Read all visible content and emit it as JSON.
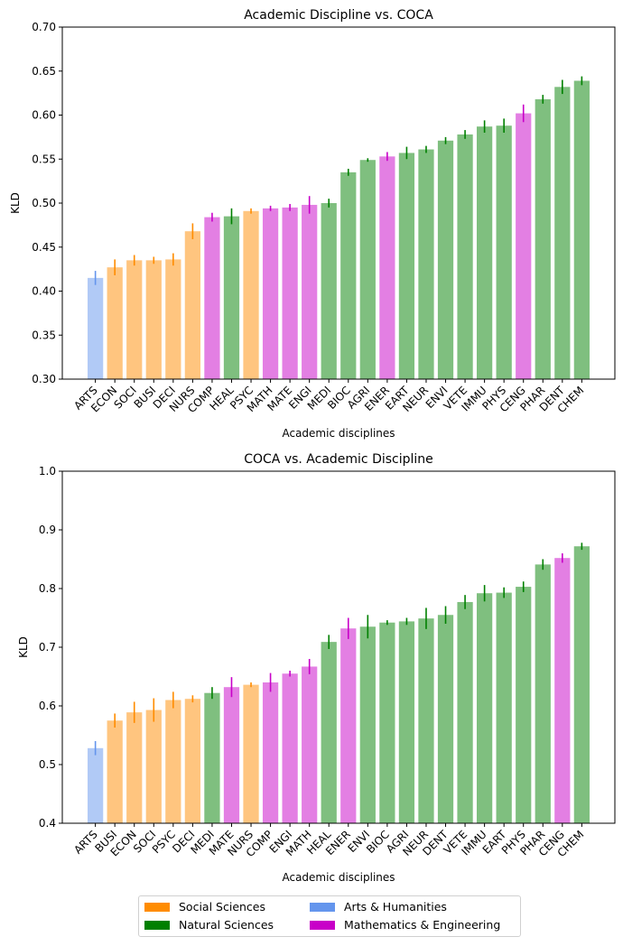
{
  "colors": {
    "social": "#ff8c00",
    "natural": "#008000",
    "arts": "#6495ed",
    "math": "#c800c8"
  },
  "legend": [
    {
      "key": "social",
      "label": "Social Sciences"
    },
    {
      "key": "arts",
      "label": "Arts & Humanities"
    },
    {
      "key": "natural",
      "label": "Natural Sciences"
    },
    {
      "key": "math",
      "label": "Mathematics & Engineering"
    }
  ],
  "chart_data": [
    {
      "type": "bar",
      "title": "Academic Discipline vs. COCA",
      "xlabel": "Academic disciplines",
      "ylabel": "KLD",
      "ylim": [
        0.3,
        0.7
      ],
      "yticks": [
        "0.30",
        "0.35",
        "0.40",
        "0.45",
        "0.50",
        "0.55",
        "0.60",
        "0.65",
        "0.70"
      ],
      "grid": false,
      "categories": [
        "ARTS",
        "ECON",
        "SOCI",
        "BUSI",
        "DECI",
        "NURS",
        "COMP",
        "HEAL",
        "PSYC",
        "MATH",
        "MATE",
        "ENGI",
        "MEDI",
        "BIOC",
        "AGRI",
        "ENER",
        "EART",
        "NEUR",
        "ENVI",
        "VETE",
        "IMMU",
        "PHYS",
        "CENG",
        "PHAR",
        "DENT",
        "CHEM"
      ],
      "groups": [
        "arts",
        "social",
        "social",
        "social",
        "social",
        "social",
        "math",
        "natural",
        "social",
        "math",
        "math",
        "math",
        "natural",
        "natural",
        "natural",
        "math",
        "natural",
        "natural",
        "natural",
        "natural",
        "natural",
        "natural",
        "math",
        "natural",
        "natural",
        "natural"
      ],
      "values": [
        0.415,
        0.427,
        0.435,
        0.435,
        0.436,
        0.468,
        0.484,
        0.485,
        0.491,
        0.494,
        0.495,
        0.498,
        0.5,
        0.535,
        0.549,
        0.553,
        0.557,
        0.561,
        0.571,
        0.578,
        0.587,
        0.588,
        0.602,
        0.618,
        0.632,
        0.639
      ],
      "errors": [
        0.008,
        0.009,
        0.006,
        0.004,
        0.007,
        0.009,
        0.005,
        0.009,
        0.003,
        0.003,
        0.004,
        0.01,
        0.005,
        0.004,
        0.002,
        0.005,
        0.007,
        0.004,
        0.004,
        0.005,
        0.007,
        0.008,
        0.01,
        0.005,
        0.008,
        0.005
      ]
    },
    {
      "type": "bar",
      "title": "COCA vs. Academic Discipline",
      "xlabel": "Academic disciplines",
      "ylabel": "KLD",
      "ylim": [
        0.4,
        1.0
      ],
      "yticks": [
        "0.4",
        "0.5",
        "0.6",
        "0.7",
        "0.8",
        "0.9",
        "1.0"
      ],
      "grid": false,
      "categories": [
        "ARTS",
        "BUSI",
        "ECON",
        "SOCI",
        "PSYC",
        "DECI",
        "MEDI",
        "MATE",
        "NURS",
        "COMP",
        "ENGI",
        "MATH",
        "HEAL",
        "ENER",
        "ENVI",
        "BIOC",
        "AGRI",
        "NEUR",
        "DENT",
        "VETE",
        "IMMU",
        "EART",
        "PHYS",
        "PHAR",
        "CENG",
        "CHEM"
      ],
      "groups": [
        "arts",
        "social",
        "social",
        "social",
        "social",
        "social",
        "natural",
        "math",
        "social",
        "math",
        "math",
        "math",
        "natural",
        "math",
        "natural",
        "natural",
        "natural",
        "natural",
        "natural",
        "natural",
        "natural",
        "natural",
        "natural",
        "natural",
        "math",
        "natural"
      ],
      "values": [
        0.528,
        0.575,
        0.589,
        0.593,
        0.61,
        0.612,
        0.622,
        0.632,
        0.636,
        0.64,
        0.655,
        0.667,
        0.709,
        0.732,
        0.735,
        0.742,
        0.744,
        0.749,
        0.755,
        0.777,
        0.792,
        0.793,
        0.803,
        0.841,
        0.852,
        0.872
      ],
      "errors": [
        0.012,
        0.012,
        0.018,
        0.02,
        0.014,
        0.006,
        0.01,
        0.017,
        0.004,
        0.016,
        0.005,
        0.013,
        0.012,
        0.018,
        0.02,
        0.004,
        0.006,
        0.018,
        0.015,
        0.012,
        0.014,
        0.009,
        0.009,
        0.009,
        0.008,
        0.006
      ]
    }
  ]
}
